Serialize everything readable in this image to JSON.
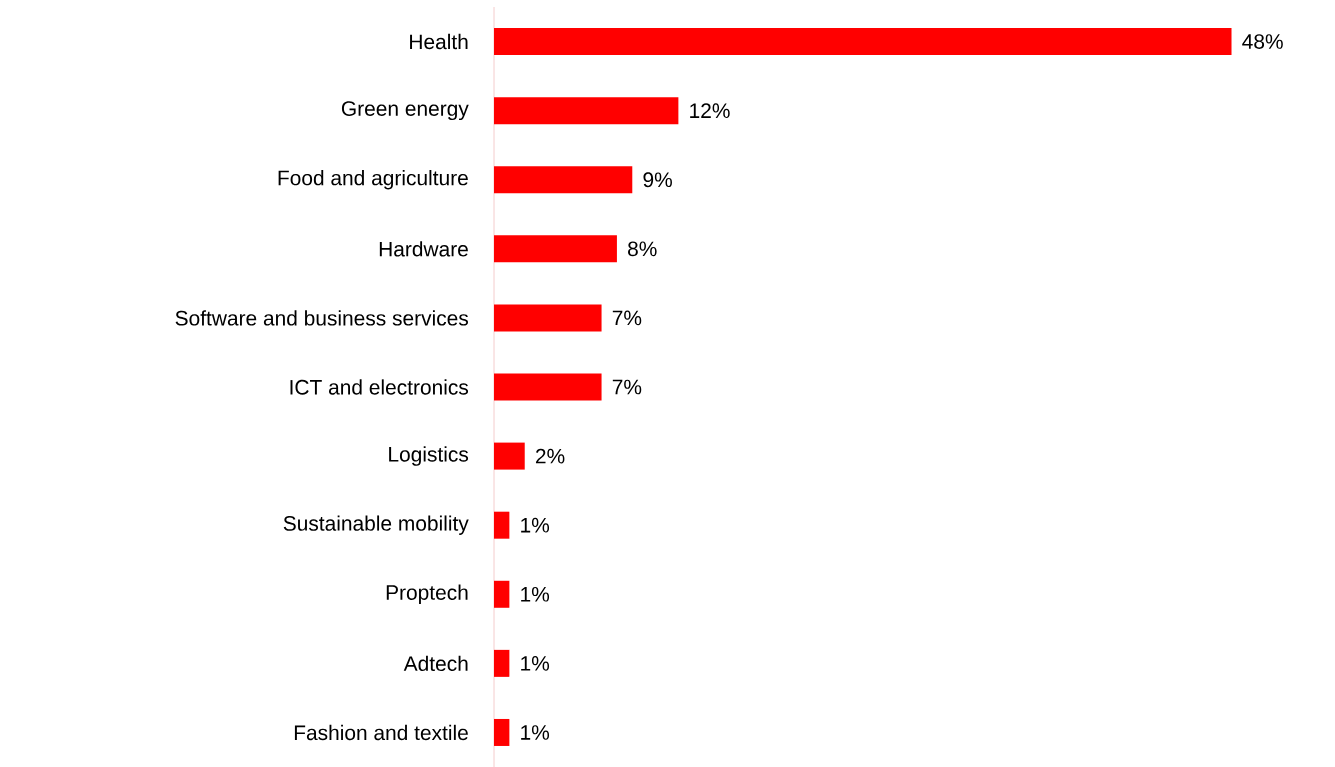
{
  "chart_data": {
    "type": "bar",
    "orientation": "horizontal",
    "categories": [
      "Health",
      "Green energy",
      "Food and agriculture",
      "Hardware",
      "Software and business services",
      "ICT and electronics",
      "Logistics",
      "Sustainable mobility",
      "Proptech",
      "Adtech",
      "Fashion and textile"
    ],
    "values": [
      48,
      12,
      9,
      8,
      7,
      7,
      2,
      1,
      1,
      1,
      1
    ],
    "value_labels": [
      "48%",
      "12%",
      "9%",
      "8%",
      "7%",
      "7%",
      "2%",
      "1%",
      "1%",
      "1%",
      "1%"
    ],
    "color": "#ff0000",
    "tick_labels": "y"
  }
}
